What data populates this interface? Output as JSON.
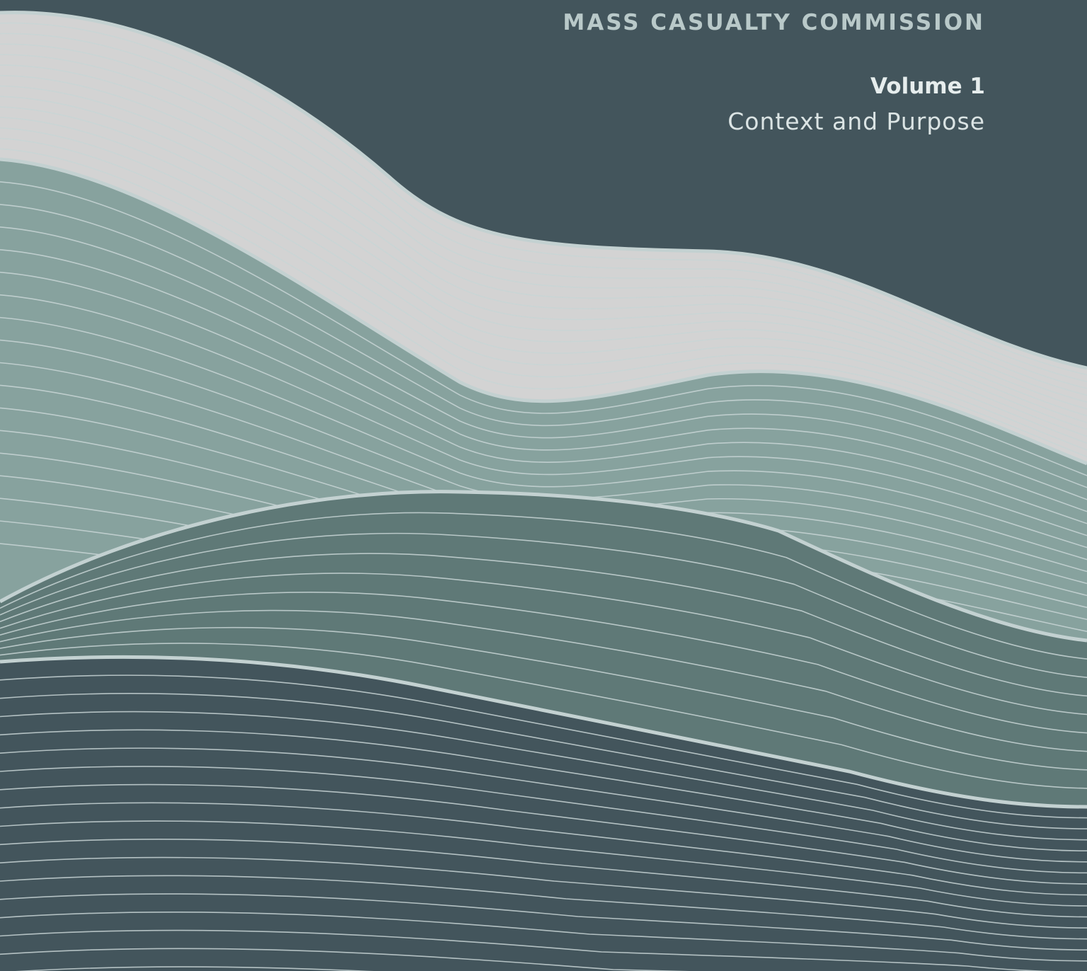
{
  "header": {
    "organization": "MASS CASUALTY COMMISSION",
    "volume": "Volume 1",
    "subtitle": "Context and Purpose"
  }
}
